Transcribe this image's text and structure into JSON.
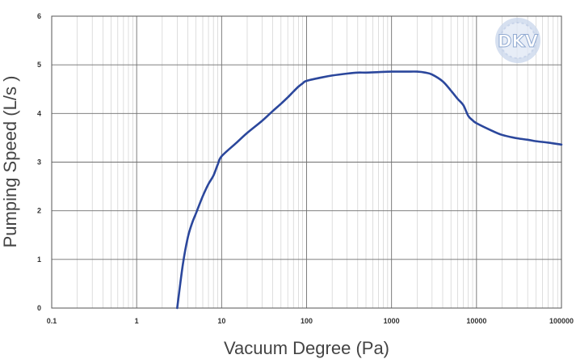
{
  "chart_data": {
    "type": "line",
    "xlabel": "Vacuum Degree (Pa)",
    "ylabel": "Pumping Speed (L/s )",
    "x_scale": "log",
    "xlim": [
      0.1,
      100000
    ],
    "ylim": [
      0,
      6
    ],
    "x_ticks": [
      "0.1",
      "1",
      "10",
      "100",
      "1000",
      "10000",
      "100000"
    ],
    "y_ticks": [
      "0",
      "1",
      "2",
      "3",
      "4",
      "5",
      "6"
    ],
    "grid": true,
    "series": [
      {
        "color": "#2b479c",
        "x": [
          3,
          3.5,
          4,
          4.5,
          5,
          6,
          7,
          8,
          9,
          10,
          15,
          20,
          30,
          40,
          50,
          60,
          70,
          80,
          90,
          100,
          150,
          200,
          300,
          400,
          500,
          700,
          1000,
          1500,
          2000,
          2500,
          3000,
          4000,
          5000,
          6000,
          7000,
          8000,
          9000,
          10000,
          15000,
          20000,
          30000,
          40000,
          50000,
          70000,
          100000
        ],
        "y": [
          0,
          0.9,
          1.45,
          1.75,
          1.95,
          2.3,
          2.55,
          2.72,
          2.95,
          3.12,
          3.4,
          3.6,
          3.85,
          4.05,
          4.2,
          4.33,
          4.45,
          4.55,
          4.62,
          4.67,
          4.74,
          4.78,
          4.82,
          4.84,
          4.84,
          4.85,
          4.86,
          4.86,
          4.86,
          4.84,
          4.8,
          4.66,
          4.47,
          4.3,
          4.17,
          3.95,
          3.86,
          3.8,
          3.65,
          3.56,
          3.49,
          3.46,
          3.43,
          3.4,
          3.36
        ]
      }
    ],
    "logo": "DKV"
  }
}
